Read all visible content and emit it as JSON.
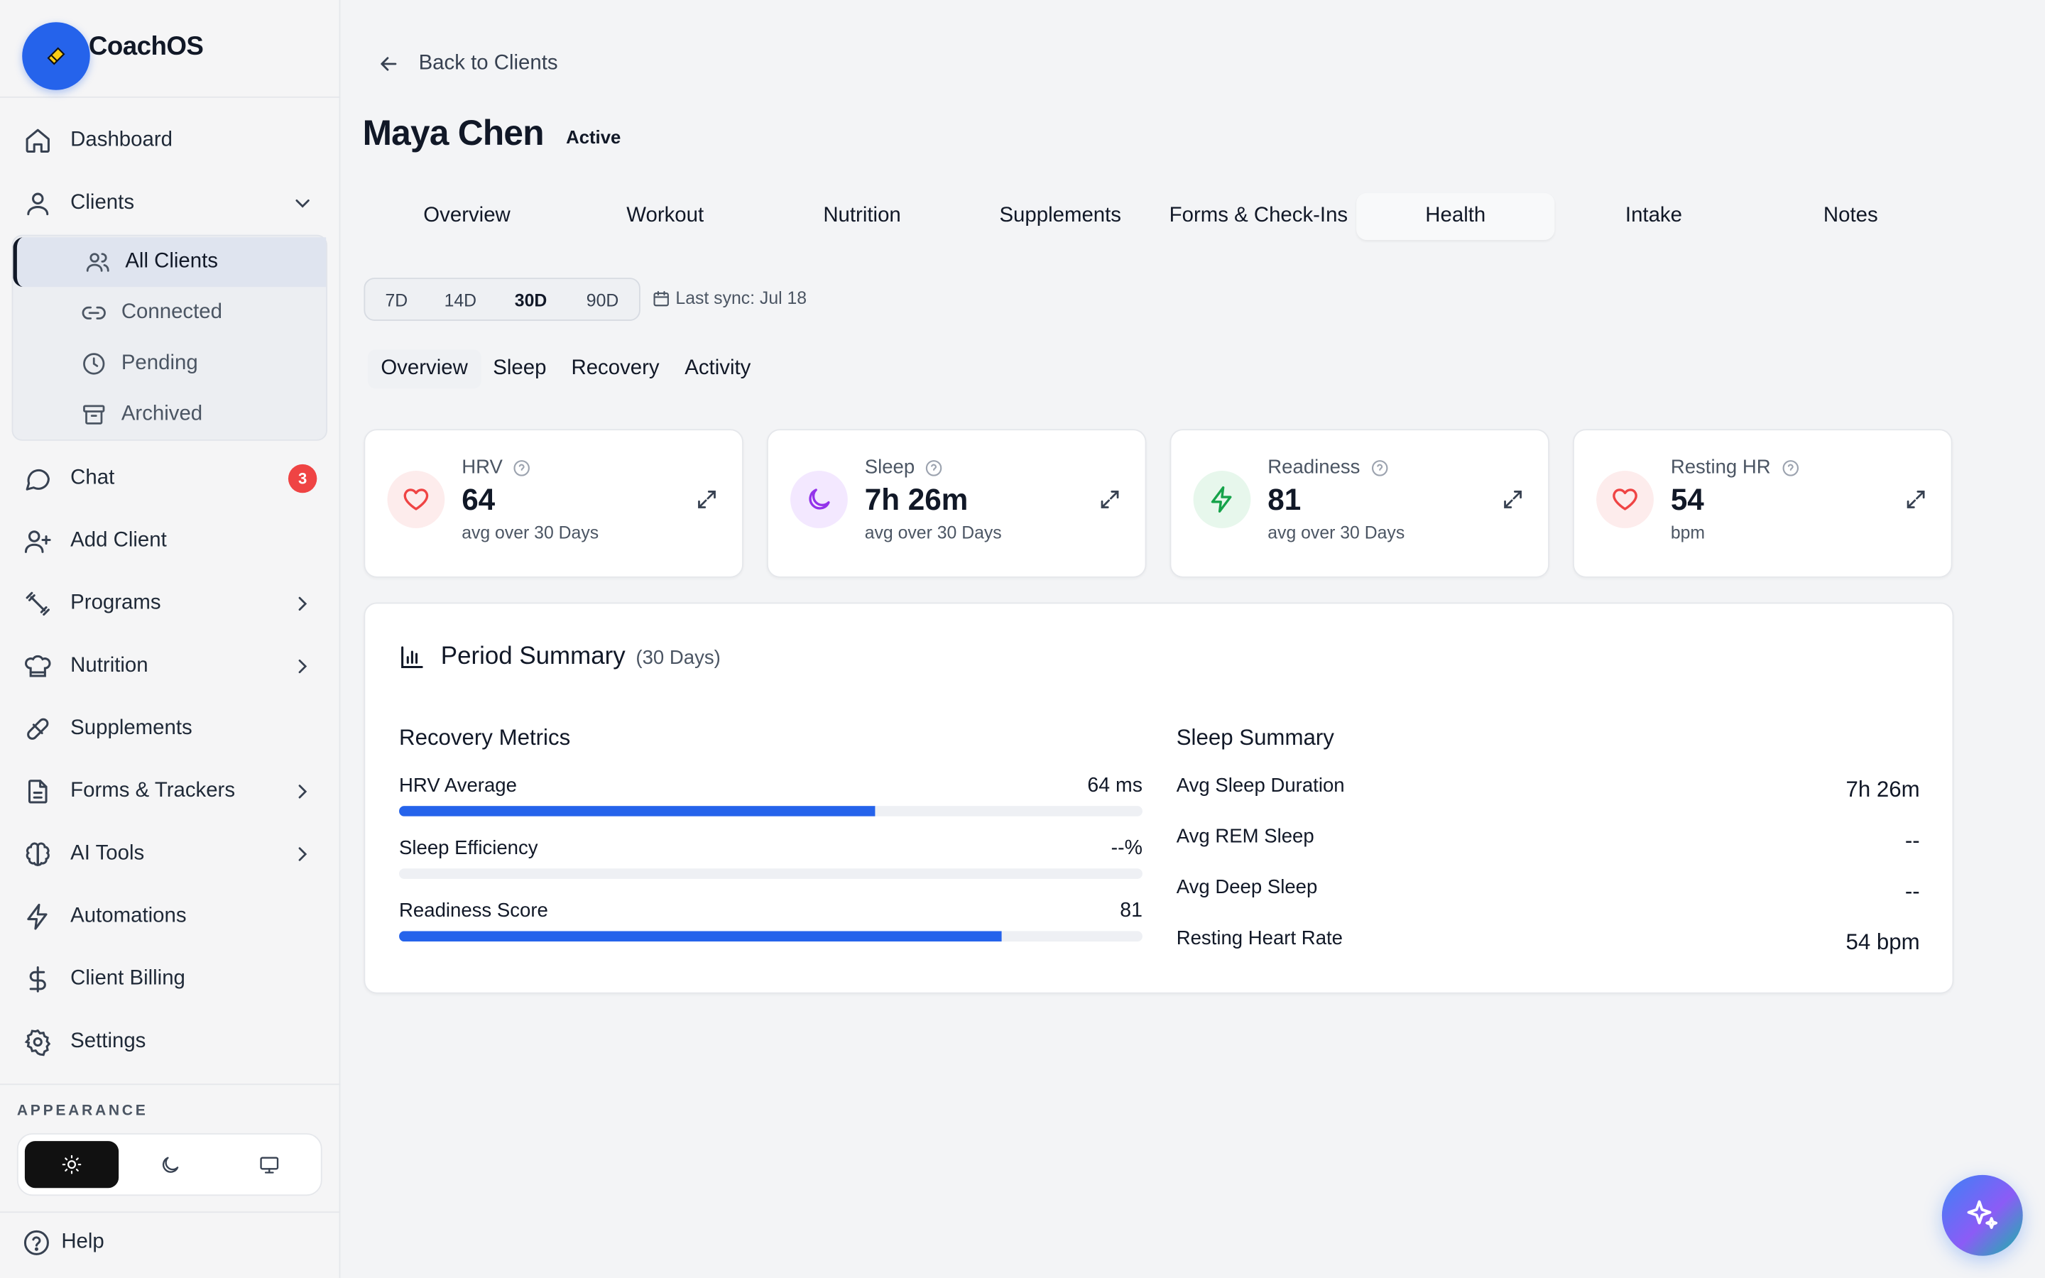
{
  "brand": {
    "name": "CoachOS"
  },
  "sidebar": {
    "items": [
      {
        "label": "Dashboard"
      },
      {
        "label": "Clients"
      },
      {
        "label": "Chat",
        "badge": "3"
      },
      {
        "label": "Add Client"
      },
      {
        "label": "Programs"
      },
      {
        "label": "Nutrition"
      },
      {
        "label": "Supplements"
      },
      {
        "label": "Forms & Trackers"
      },
      {
        "label": "AI Tools"
      },
      {
        "label": "Automations"
      },
      {
        "label": "Client Billing"
      },
      {
        "label": "Settings"
      }
    ],
    "clients_sub": [
      {
        "label": "All Clients"
      },
      {
        "label": "Connected"
      },
      {
        "label": "Pending"
      },
      {
        "label": "Archived"
      }
    ],
    "appearance_label": "APPEARANCE",
    "help_label": "Help"
  },
  "header": {
    "back_label": "Back to Clients",
    "client_name": "Maya Chen",
    "status": "Active"
  },
  "tabs": [
    {
      "label": "Overview"
    },
    {
      "label": "Workout"
    },
    {
      "label": "Nutrition"
    },
    {
      "label": "Supplements"
    },
    {
      "label": "Forms & Check-Ins"
    },
    {
      "label": "Health",
      "active": true
    },
    {
      "label": "Intake"
    },
    {
      "label": "Notes"
    }
  ],
  "range": {
    "options": [
      "7D",
      "14D",
      "30D",
      "90D"
    ],
    "selected": "30D",
    "sync_text": "Last sync: Jul 18"
  },
  "subtabs": [
    {
      "label": "Overview",
      "active": true
    },
    {
      "label": "Sleep"
    },
    {
      "label": "Recovery"
    },
    {
      "label": "Activity"
    }
  ],
  "cards": [
    {
      "title": "HRV",
      "value": "64",
      "sub": "avg over 30 Days",
      "icon": "heart-icon",
      "color": "#ef4444",
      "bg": "#fdecec"
    },
    {
      "title": "Sleep",
      "value": "7h 26m",
      "sub": "avg over 30 Days",
      "icon": "moon-icon",
      "color": "#9333ea",
      "bg": "#f3e8ff"
    },
    {
      "title": "Readiness",
      "value": "81",
      "sub": "avg over 30 Days",
      "icon": "lightning-icon",
      "color": "#16a34a",
      "bg": "#e7f7ec"
    },
    {
      "title": "Resting HR",
      "value": "54",
      "sub": "bpm",
      "icon": "heart-icon",
      "color": "#ef4444",
      "bg": "#fdecec"
    }
  ],
  "summary": {
    "title": "Period Summary",
    "period": "(30 Days)",
    "recovery_title": "Recovery Metrics",
    "recovery": [
      {
        "label": "HRV Average",
        "value": "64 ms",
        "progress": 0.64
      },
      {
        "label": "Sleep Efficiency",
        "value": "--%",
        "progress": 0
      },
      {
        "label": "Readiness Score",
        "value": "81",
        "progress": 0.81
      }
    ],
    "sleep_title": "Sleep Summary",
    "sleep": [
      {
        "label": "Avg Sleep Duration",
        "value": "7h 26m"
      },
      {
        "label": "Avg REM Sleep",
        "value": "--"
      },
      {
        "label": "Avg Deep Sleep",
        "value": "--"
      },
      {
        "label": "Resting Heart Rate",
        "value": "54 bpm"
      }
    ]
  },
  "colors": {
    "accent": "#2563eb",
    "badge": "#ef4444"
  }
}
